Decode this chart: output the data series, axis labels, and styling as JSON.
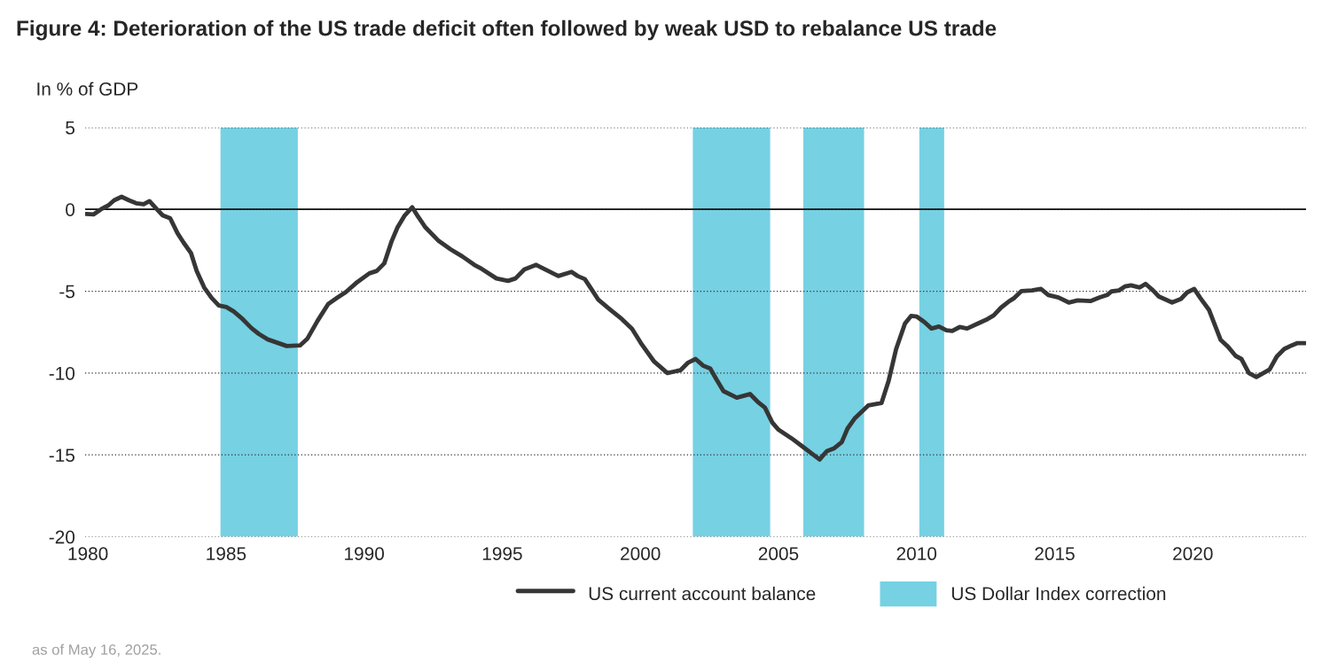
{
  "chart_data": {
    "type": "line",
    "title": "Figure 4: Deterioration of the US trade deficit often followed by weak USD to rebalance US trade",
    "ylabel": "In % of GDP",
    "annotations": [
      "as of May 16, 2025."
    ],
    "xlim": [
      1979.9,
      2024.1
    ],
    "xticks": [
      1980,
      1985,
      1990,
      1995,
      2000,
      2005,
      2010,
      2015,
      2020
    ],
    "ylim": [
      -20,
      5
    ],
    "yticks": [
      5,
      0,
      -5,
      -10,
      -15,
      -20
    ],
    "grid": "y",
    "legend": "bottom",
    "line_style": "solid",
    "marker": "none",
    "ref_lines": [
      {
        "axis": "y",
        "value": 0,
        "label": null,
        "color": "#000000",
        "line_style": "solid"
      }
    ],
    "bands": [
      {
        "axis": "x",
        "from": 1984.8,
        "to": 1987.6,
        "label": "US Dollar Index correction",
        "color": "#76d1e3"
      },
      {
        "axis": "x",
        "from": 2001.9,
        "to": 2004.7,
        "label": null,
        "color": "#76d1e3"
      },
      {
        "axis": "x",
        "from": 2005.9,
        "to": 2008.1,
        "label": null,
        "color": "#76d1e3"
      },
      {
        "axis": "x",
        "from": 2010.1,
        "to": 2011.0,
        "label": null,
        "color": "#76d1e3"
      }
    ],
    "series": [
      {
        "name": "US current account balance",
        "color": "#363636",
        "x": [
          1979.94,
          1980.2,
          1980.47,
          1980.74,
          1980.95,
          1981.22,
          1981.49,
          1981.75,
          1982.02,
          1982.23,
          1982.5,
          1982.71,
          1982.98,
          1983.25,
          1983.46,
          1983.73,
          1983.94,
          1984.21,
          1984.48,
          1984.74,
          1985.01,
          1985.28,
          1985.6,
          1985.92,
          1986.19,
          1986.51,
          1986.83,
          1987.2,
          1987.68,
          1987.95,
          1988.32,
          1988.7,
          1989.02,
          1989.34,
          1989.71,
          1990.19,
          1990.46,
          1990.73,
          1991.0,
          1991.21,
          1991.47,
          1991.74,
          1991.96,
          1992.22,
          1992.7,
          1993.13,
          1993.56,
          1993.99,
          1994.25,
          1994.79,
          1995.21,
          1995.48,
          1995.8,
          1996.23,
          1996.66,
          1997.03,
          1997.51,
          1997.73,
          1997.99,
          1998.26,
          1998.47,
          1998.9,
          1999.33,
          1999.7,
          2000.02,
          2000.5,
          2000.98,
          2001.46,
          2001.73,
          2002.0,
          2002.27,
          2002.53,
          2002.75,
          2003.01,
          2003.49,
          2003.97,
          2004.24,
          2004.51,
          2004.78,
          2004.99,
          2005.47,
          2005.85,
          2006.49,
          2006.75,
          2007.02,
          2007.29,
          2007.5,
          2007.77,
          2008.25,
          2008.73,
          2008.99,
          2009.26,
          2009.58,
          2009.8,
          2010.01,
          2010.28,
          2010.54,
          2010.81,
          2011.08,
          2011.29,
          2011.56,
          2011.83,
          2012.15,
          2012.57,
          2012.79,
          2013.06,
          2013.32,
          2013.54,
          2013.8,
          2014.18,
          2014.5,
          2014.77,
          2015.14,
          2015.51,
          2015.83,
          2016.31,
          2016.63,
          2016.9,
          2017.06,
          2017.33,
          2017.54,
          2017.76,
          2018.08,
          2018.29,
          2018.56,
          2018.77,
          2019.25,
          2019.57,
          2019.79,
          2020.05,
          2020.27,
          2020.59,
          2021.01,
          2021.28,
          2021.55,
          2021.76,
          2022.03,
          2022.3,
          2022.78,
          2023.04,
          2023.31,
          2023.58,
          2023.79,
          2024.06
        ],
        "values": [
          -0.28,
          -0.31,
          0.0,
          0.24,
          0.55,
          0.77,
          0.55,
          0.37,
          0.31,
          0.5,
          0.0,
          -0.37,
          -0.55,
          -1.47,
          -2.02,
          -2.66,
          -3.76,
          -4.77,
          -5.41,
          -5.87,
          -5.96,
          -6.24,
          -6.7,
          -7.25,
          -7.61,
          -7.94,
          -8.13,
          -8.35,
          -8.31,
          -7.89,
          -6.79,
          -5.78,
          -5.41,
          -5.05,
          -4.5,
          -3.91,
          -3.76,
          -3.3,
          -1.93,
          -1.1,
          -0.37,
          0.13,
          -0.46,
          -1.1,
          -1.93,
          -2.44,
          -2.88,
          -3.39,
          -3.63,
          -4.22,
          -4.37,
          -4.22,
          -3.67,
          -3.39,
          -3.76,
          -4.07,
          -3.82,
          -4.07,
          -4.26,
          -4.95,
          -5.5,
          -6.11,
          -6.7,
          -7.3,
          -8.17,
          -9.3,
          -10.0,
          -9.82,
          -9.36,
          -9.14,
          -9.54,
          -9.72,
          -10.37,
          -11.1,
          -11.5,
          -11.28,
          -11.74,
          -12.11,
          -13.03,
          -13.44,
          -13.98,
          -14.46,
          -15.28,
          -14.77,
          -14.59,
          -14.22,
          -13.39,
          -12.75,
          -11.98,
          -11.83,
          -10.46,
          -8.53,
          -6.97,
          -6.51,
          -6.55,
          -6.88,
          -7.28,
          -7.16,
          -7.39,
          -7.43,
          -7.19,
          -7.28,
          -7.03,
          -6.7,
          -6.48,
          -6.0,
          -5.65,
          -5.41,
          -4.99,
          -4.95,
          -4.86,
          -5.23,
          -5.38,
          -5.69,
          -5.56,
          -5.6,
          -5.38,
          -5.23,
          -5.01,
          -4.95,
          -4.71,
          -4.64,
          -4.77,
          -4.55,
          -4.95,
          -5.32,
          -5.69,
          -5.47,
          -5.08,
          -4.86,
          -5.41,
          -6.15,
          -7.98,
          -8.4,
          -8.95,
          -9.14,
          -10.0,
          -10.24,
          -9.78,
          -8.99,
          -8.53,
          -8.31,
          -8.17,
          -8.17
        ]
      }
    ]
  }
}
